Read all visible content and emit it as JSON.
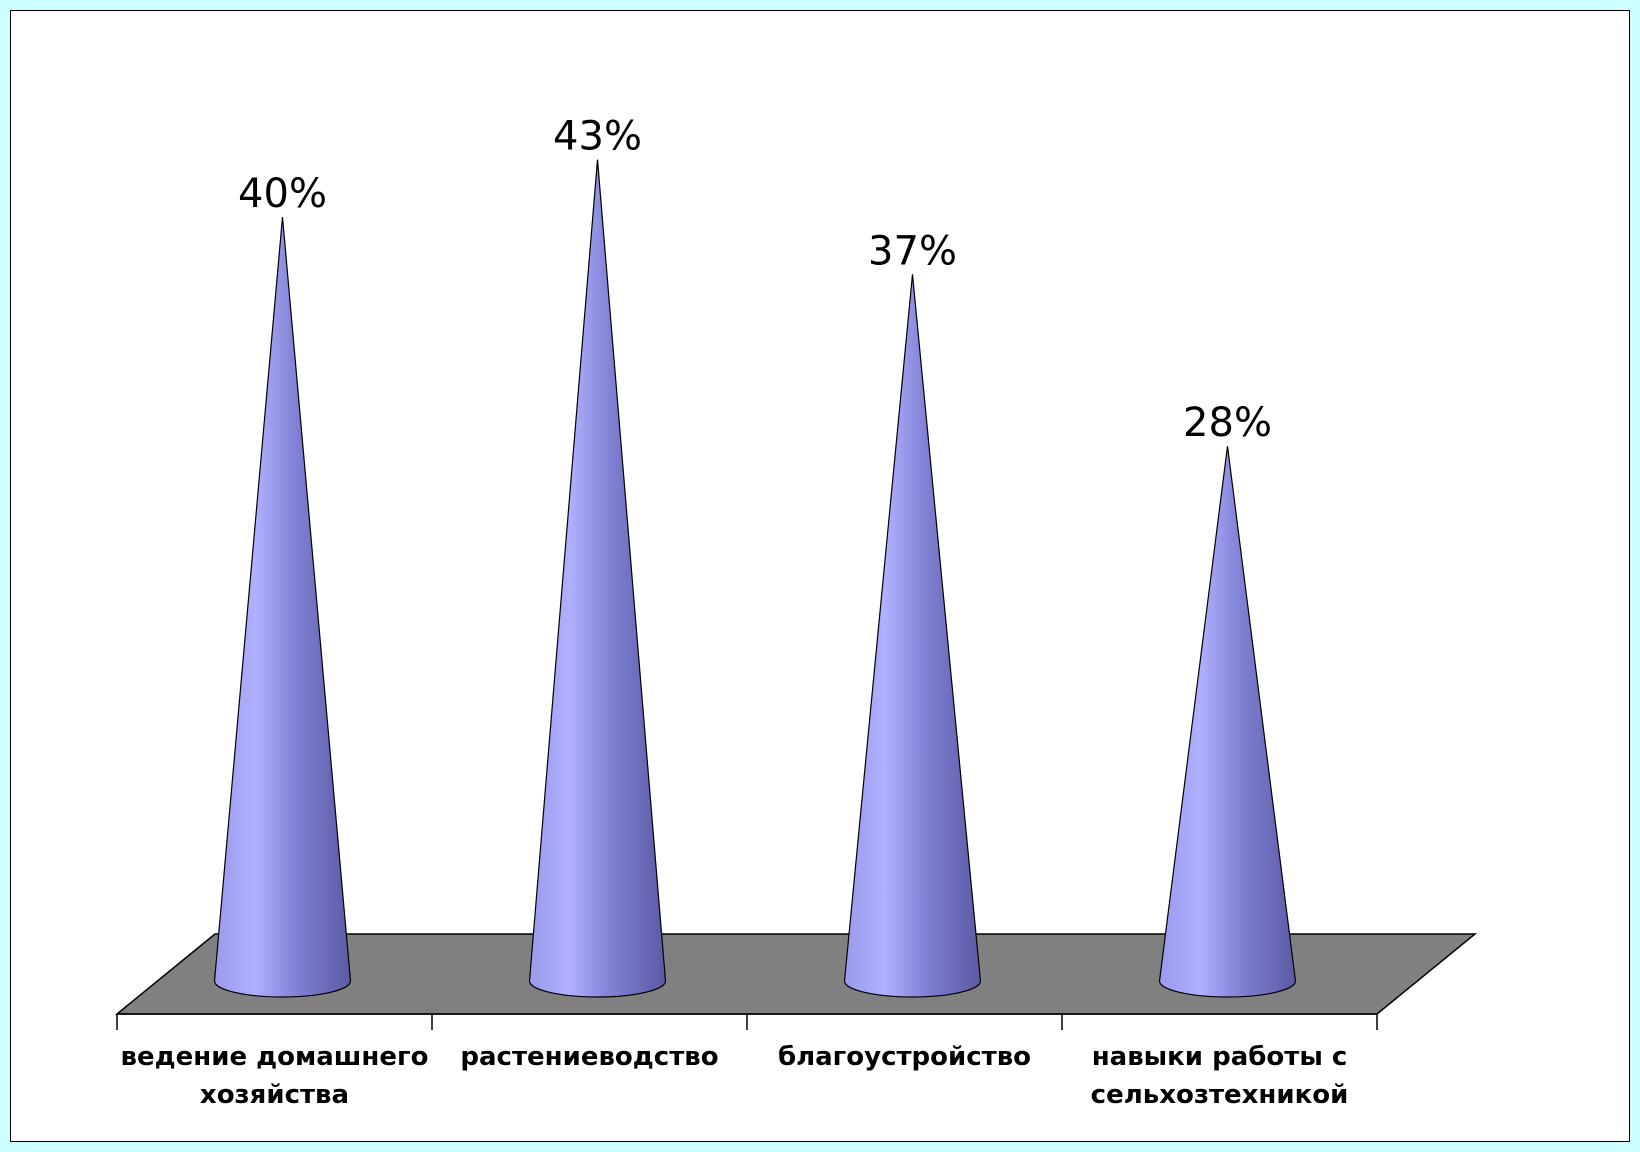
{
  "chart_data": {
    "type": "bar",
    "bar_shape": "cone-3d",
    "categories": [
      [
        "ведение домашнего",
        "хозяйства"
      ],
      [
        "растениеводство"
      ],
      [
        "благоустройство"
      ],
      [
        "навыки работы с",
        "сельхозтехникой"
      ]
    ],
    "values": [
      40,
      43,
      37,
      28
    ],
    "data_labels": [
      "40%",
      "43%",
      "37%",
      "28%"
    ],
    "unit": "%",
    "ylim": [
      0,
      45
    ],
    "grid": false,
    "legend": "none"
  },
  "colors": {
    "page_background": "#ccffff",
    "chart_background": "#ffffff",
    "floor": "#808080",
    "cone_light": "#aaaaff",
    "cone_dark": "#5c5ca8"
  }
}
